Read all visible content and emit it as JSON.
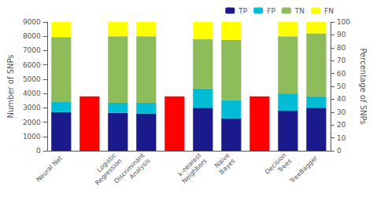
{
  "chart_data": {
    "type": "bar",
    "stacked": true,
    "categories": [
      "Neural Net",
      null,
      "Logistic\nRegression",
      "Discriminant\nAnalysis",
      null,
      "k-nearest\nNeighbors",
      "Naive\nBayes",
      null,
      "Decision\nTrees",
      "TreeBagger"
    ],
    "series": [
      {
        "name": "TP",
        "color": "#1a1a8c",
        "values": [
          2700,
          null,
          2650,
          2600,
          null,
          3000,
          2250,
          null,
          2800,
          3000
        ]
      },
      {
        "name": "FP",
        "color": "#00bcd4",
        "values": [
          700,
          null,
          700,
          750,
          null,
          1350,
          1300,
          null,
          1200,
          800
        ]
      },
      {
        "name": "TN",
        "color": "#8fbc5a",
        "values": [
          4550,
          null,
          4650,
          4650,
          null,
          3450,
          4200,
          null,
          4000,
          4400
        ]
      },
      {
        "name": "FN",
        "color": "#ffff00",
        "values": [
          1050,
          null,
          1000,
          1000,
          null,
          1200,
          1250,
          null,
          1000,
          800
        ]
      },
      {
        "color": "#ff0000",
        "values": [
          null,
          3800,
          null,
          null,
          3800,
          null,
          null,
          3800,
          null,
          null
        ]
      }
    ],
    "ylabel": "Number of SNPs",
    "y2label": "Percentage of SNPs",
    "ylim": [
      0,
      9000
    ],
    "yticks": [
      0,
      1000,
      2000,
      3000,
      4000,
      5000,
      6000,
      7000,
      8000,
      9000
    ],
    "y2lim": [
      0,
      100
    ],
    "y2ticks": [
      0,
      10,
      20,
      30,
      40,
      50,
      60,
      70,
      80,
      90,
      100
    ],
    "legend": "upper right",
    "grid": false
  }
}
